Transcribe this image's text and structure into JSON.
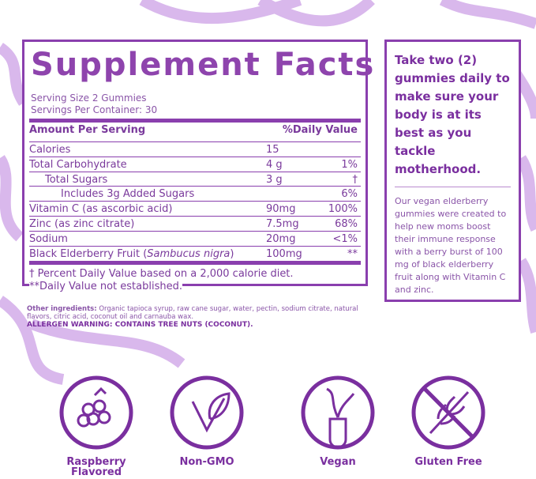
{
  "facts": {
    "title": "Supplement Facts",
    "serving_size": "Serving Size 2 Gummies",
    "servings_per_container": "Servings Per Container: 30",
    "header": {
      "amount": "Amount Per Serving",
      "dv": "%Daily Value"
    },
    "rows": [
      {
        "name": [
          "Calories"
        ],
        "amount": "15",
        "dv": ""
      },
      {
        "name": [
          "Total Carbohydrate"
        ],
        "amount": "4 g",
        "dv": "1%"
      },
      {
        "name": [
          "Total Sugars"
        ],
        "amount": "3 g",
        "dv": "†"
      },
      {
        "name": [
          "Includes 3g Added Sugars"
        ],
        "amount": "",
        "dv": "6%"
      },
      {
        "name": [
          "Vitamin C (as ascorbic acid)"
        ],
        "amount": "90mg",
        "dv": "100%"
      },
      {
        "name": [
          "Zinc (as zinc citrate)"
        ],
        "amount": "7.5mg",
        "dv": "68%"
      },
      {
        "name": [
          "Sodium"
        ],
        "amount": "20mg",
        "dv": "<1%"
      },
      {
        "name": [
          "Black Elderberry Fruit (",
          "Sambucus nigra",
          ")"
        ],
        "amount": "100mg",
        "dv": "**"
      }
    ],
    "footnotes": [
      "† Percent Daily Value based on a 2,000 calorie diet.",
      "**Daily Value not established."
    ]
  },
  "ingredients": {
    "label": "Other ingredients:",
    "text": "Organic tapioca syrup, raw cane sugar, water, pectin, sodium citrate, natural flavors, citric acid, coconut oil and carnauba wax.",
    "allergen": "ALLERGEN WARNING: CONTAINS TREE NUTS (COCONUT)."
  },
  "side": {
    "heading": "Take two (2) gummies daily to make sure your body is at its best as you tackle motherhood.",
    "body": "Our vegan elderberry gummies were created to help new moms boost their immune response with a berry burst of 100 mg of black elderberry fruit along with Vitamin C and zinc."
  },
  "badges": [
    "Raspberry Flavored",
    "Non-GMO",
    "Vegan",
    "Gluten Free"
  ]
}
